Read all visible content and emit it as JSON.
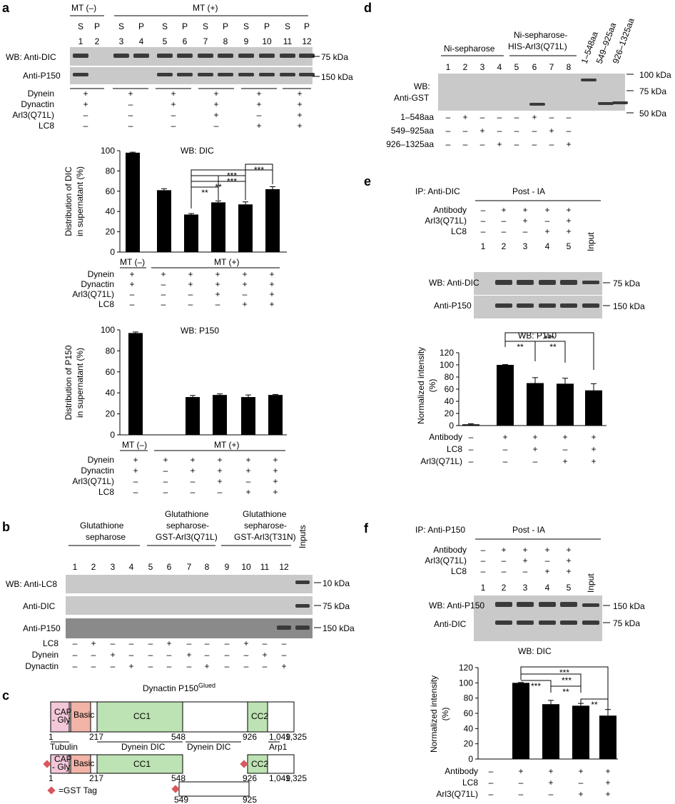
{
  "panel_letters": {
    "a": "a",
    "b": "b",
    "c": "c",
    "d": "d",
    "e": "e",
    "f": "f"
  },
  "a": {
    "mt_minus": "MT (–)",
    "mt_plus": "MT (+)",
    "sp_labels": [
      "S",
      "P",
      "S",
      "P",
      "S",
      "P",
      "S",
      "P",
      "S",
      "P",
      "S",
      "P"
    ],
    "lanes": [
      "1",
      "2",
      "3",
      "4",
      "5",
      "6",
      "7",
      "8",
      "9",
      "10",
      "11",
      "12"
    ],
    "blot1_label": "WB: Anti-DIC",
    "blot2_label": "Anti-P150",
    "kda1": "75 kDa",
    "kda2": "150 kDa",
    "cond_labels": [
      "Dynein",
      "Dynactin",
      "Arl3(Q71L)",
      "LC8"
    ],
    "cond_rows": [
      [
        "+",
        "+",
        "+",
        "+",
        "+",
        "+"
      ],
      [
        "+",
        "–",
        "+",
        "+",
        "+",
        "+"
      ],
      [
        "–",
        "–",
        "–",
        "+",
        "–",
        "+"
      ],
      [
        "–",
        "–",
        "–",
        "–",
        "+",
        "+"
      ]
    ],
    "chart1_cond_rows": [
      [
        "+",
        "+",
        "+",
        "+",
        "+",
        "+"
      ],
      [
        "+",
        "–",
        "+",
        "+",
        "+",
        "+"
      ],
      [
        "–",
        "–",
        "–",
        "+",
        "–",
        "+"
      ],
      [
        "–",
        "–",
        "–",
        "–",
        "+",
        "+"
      ]
    ],
    "chart2_cond_rows": [
      [
        "+",
        "+",
        "+",
        "+",
        "+",
        "+"
      ],
      [
        "+",
        "–",
        "+",
        "+",
        "+",
        "+"
      ],
      [
        "–",
        "–",
        "–",
        "+",
        "–",
        "+"
      ],
      [
        "–",
        "–",
        "–",
        "–",
        "+",
        "+"
      ]
    ]
  },
  "b": {
    "group1": "Glutathione sepharose",
    "group2a": "Glutathione",
    "group2b": "sepharose-",
    "group2c": "GST-Arl3(Q71L)",
    "group3a": "Glutathione",
    "group3b": "sepharose-",
    "group3c": "GST-Arl3(T31N)",
    "inputs": "Inputs",
    "lanes": [
      "1",
      "2",
      "3",
      "4",
      "5",
      "6",
      "7",
      "8",
      "9",
      "10",
      "11",
      "12"
    ],
    "blot_labels": [
      "WB: Anti-LC8",
      "Anti-DIC",
      "Anti-P150"
    ],
    "kda": [
      "10 kDa",
      "75 kDa",
      "150 kDa"
    ],
    "cond_labels": [
      "LC8",
      "Dynein",
      "Dynactin"
    ],
    "cond_rows": [
      [
        "–",
        "+",
        "–",
        "–",
        "–",
        "+",
        "–",
        "–",
        "–",
        "+",
        "–",
        "–"
      ],
      [
        "–",
        "–",
        "+",
        "–",
        "–",
        "–",
        "+",
        "–",
        "–",
        "–",
        "+",
        "–"
      ],
      [
        "–",
        "–",
        "–",
        "+",
        "–",
        "–",
        "–",
        "+",
        "–",
        "–",
        "–",
        "+"
      ]
    ]
  },
  "c": {
    "title": "Dynactin P150",
    "title_sup": "Glued",
    "cap_gly_1": "CAP",
    "cap_gly_2": "- Gly",
    "basic": "Basic",
    "cc1": "CC1",
    "cc2": "CC2",
    "pos": {
      "p1": "1",
      "p217": "217",
      "p548": "548",
      "p926": "926",
      "p1049": "1,049",
      "p1325": "1,325",
      "p549": "549",
      "p925": "925"
    },
    "regions": {
      "tubulin": "Tubulin",
      "dynein1": "Dynein DIC",
      "dynein2": "Dynein DIC",
      "arp1": "Arp1"
    },
    "gst_legend": "=GST Tag"
  },
  "d": {
    "group1": "Ni-sepharose",
    "group2a": "Ni-sepharose-",
    "group2b": "HIS-Arl3(Q71L)",
    "lanes": [
      "1",
      "2",
      "3",
      "4",
      "5",
      "6",
      "7",
      "8"
    ],
    "inputs": [
      "1–548aa",
      "549–925aa",
      "926–1325aa"
    ],
    "blot_label1": "WB:",
    "blot_label2": "Anti-GST",
    "kda": [
      "100 kDa",
      "75 kDa",
      "50 kDa"
    ],
    "cond_labels": [
      "1–548aa",
      "549–925aa",
      "926–1325aa"
    ],
    "cond_rows": [
      [
        "–",
        "+",
        "–",
        "–",
        "–",
        "+",
        "–",
        "–"
      ],
      [
        "–",
        "–",
        "+",
        "–",
        "–",
        "–",
        "+",
        "–"
      ],
      [
        "–",
        "–",
        "–",
        "+",
        "–",
        "–",
        "–",
        "+"
      ]
    ]
  },
  "e": {
    "ip": "IP: Anti-DIC",
    "post": "Post - IA",
    "top_labels": [
      "Antibody",
      "Arl3(Q71L)",
      "LC8"
    ],
    "top_rows": [
      [
        "–",
        "+",
        "+",
        "+",
        "+"
      ],
      [
        "–",
        "–",
        "+",
        "–",
        "+"
      ],
      [
        "–",
        "–",
        "–",
        "+",
        "+"
      ]
    ],
    "lanes": [
      "1",
      "2",
      "3",
      "4",
      "5"
    ],
    "input": "Input",
    "blot_labels": [
      "WB: Anti-DIC",
      "Anti-P150"
    ],
    "kda": [
      "75 kDa",
      "150 kDa"
    ],
    "bottom_labels": [
      "Antibody",
      "LC8",
      "Arl3(Q71L)"
    ],
    "bottom_rows": [
      [
        "–",
        "+",
        "+",
        "+",
        "+"
      ],
      [
        "–",
        "–",
        "+",
        "–",
        "+"
      ],
      [
        "–",
        "–",
        "–",
        "+",
        "+"
      ]
    ]
  },
  "f": {
    "ip": "IP: Anti-P150",
    "post": "Post - IA",
    "top_labels": [
      "Antibody",
      "Arl3(Q71L)",
      "LC8"
    ],
    "top_rows": [
      [
        "–",
        "+",
        "+",
        "+",
        "+"
      ],
      [
        "–",
        "–",
        "+",
        "–",
        "+"
      ],
      [
        "–",
        "–",
        "–",
        "+",
        "+"
      ]
    ],
    "lanes": [
      "1",
      "2",
      "3",
      "4",
      "5"
    ],
    "input": "Input",
    "blot_labels": [
      "WB: Anti-P150",
      "Anti-DIC"
    ],
    "kda": [
      "150 kDa",
      "75 kDa"
    ],
    "bottom_labels": [
      "Antibody",
      "LC8",
      "Arl3(Q71L)"
    ],
    "bottom_rows": [
      [
        "–",
        "+",
        "+",
        "+",
        "+"
      ],
      [
        "–",
        "–",
        "+",
        "–",
        "+"
      ],
      [
        "–",
        "–",
        "–",
        "+",
        "+"
      ]
    ]
  },
  "chart_data": [
    {
      "id": "a1",
      "type": "bar",
      "title": "WB: DIC",
      "ylabel": "Distribution of DIC in supernatant (%)",
      "ylim": [
        0,
        100
      ],
      "yticks": [
        "0",
        "20",
        "40",
        "60",
        "80",
        "100"
      ],
      "group_labels": [
        "MT (–)",
        "MT (+)"
      ],
      "values": [
        98,
        61,
        37,
        49,
        47,
        62
      ],
      "errors": [
        0.5,
        1.5,
        1,
        1.5,
        2.5,
        2.5
      ],
      "significance": [
        "**",
        "**",
        "***",
        "***",
        "***"
      ]
    },
    {
      "id": "a2",
      "type": "bar",
      "title": "WB: P150",
      "ylabel": "Distribution of P150 in supernatant (%)",
      "ylim": [
        0,
        100
      ],
      "yticks": [
        "0",
        "20",
        "40",
        "60",
        "80",
        "100"
      ],
      "group_labels": [
        "MT (–)",
        "MT (+)"
      ],
      "values": [
        97,
        0,
        36,
        38,
        36,
        38
      ],
      "errors": [
        1,
        0,
        1.5,
        1,
        2,
        0.5
      ]
    },
    {
      "id": "e",
      "type": "bar",
      "title": "WB: P150",
      "ylabel": "Normalized intensity (%)",
      "ylim": [
        0,
        120
      ],
      "yticks": [
        "0",
        "20",
        "40",
        "60",
        "80",
        "100",
        "120"
      ],
      "values": [
        2,
        100,
        70,
        69,
        58
      ],
      "errors": [
        1,
        0.5,
        9,
        9,
        11
      ],
      "significance": [
        "**",
        "**",
        "***"
      ]
    },
    {
      "id": "f",
      "type": "bar",
      "title": "WB: DIC",
      "ylabel": "Normalized intensity (%)",
      "ylim": [
        0,
        120
      ],
      "yticks": [
        "0",
        "20",
        "40",
        "60",
        "80",
        "100",
        "120"
      ],
      "values": [
        0,
        100,
        72,
        70,
        57
      ],
      "errors": [
        0,
        0.5,
        5,
        3,
        8
      ],
      "significance": [
        "***",
        "***",
        "***",
        "**",
        "**"
      ]
    }
  ]
}
